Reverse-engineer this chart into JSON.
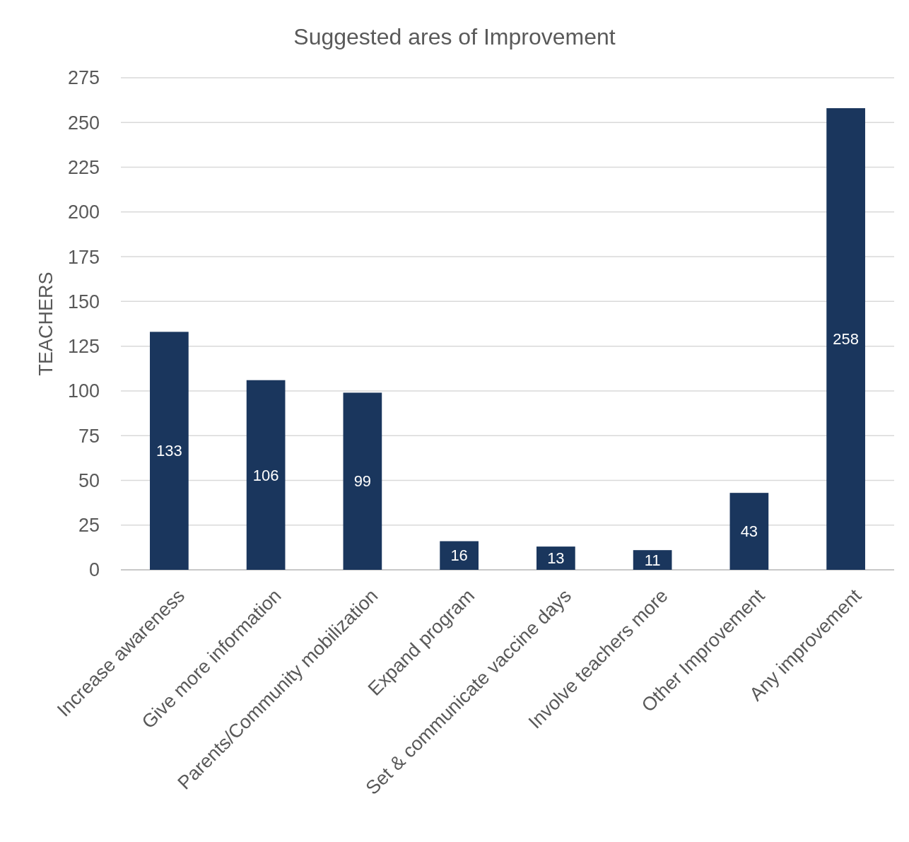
{
  "chart_data": {
    "type": "bar",
    "title": "Suggested ares of Improvement",
    "ylabel": "TEACHERS",
    "categories": [
      "Increase awareness",
      "Give more information",
      "Parents/Community mobilization",
      "Expand program",
      "Set & communicate vaccine days",
      "Involve teachers more",
      "Other Improvement",
      "Any improvement"
    ],
    "values": [
      133,
      106,
      99,
      16,
      13,
      11,
      43,
      258
    ],
    "color": "#1a365d",
    "ylim": [
      0,
      275
    ],
    "yticks": [
      0,
      25,
      50,
      75,
      100,
      125,
      150,
      175,
      200,
      225,
      250,
      275
    ],
    "grid": "y",
    "data_labels": true
  }
}
